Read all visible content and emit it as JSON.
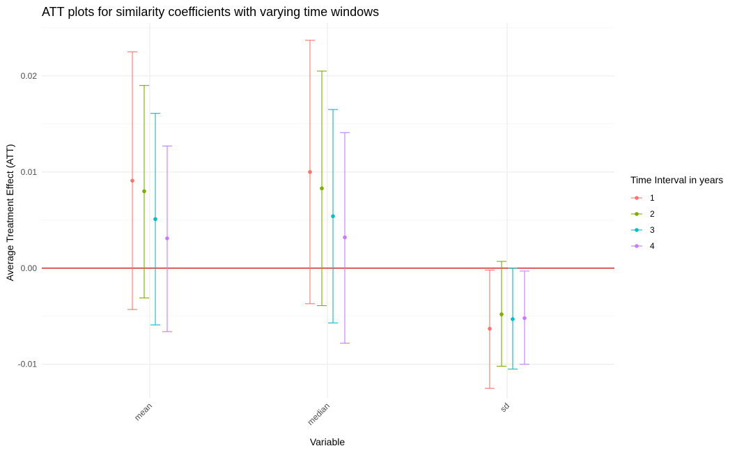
{
  "chart_data": {
    "type": "errorbar",
    "title": "ATT plots for similarity coefficients with varying time windows",
    "xlabel": "Variable",
    "ylabel": "Average Treatment Effect (ATT)",
    "categories": [
      "mean",
      "median",
      "sd"
    ],
    "y_ticks": [
      {
        "value": -0.01,
        "label": "-0.01"
      },
      {
        "value": 0.0,
        "label": "0.00"
      },
      {
        "value": 0.01,
        "label": "0.01"
      },
      {
        "value": 0.02,
        "label": "0.02"
      }
    ],
    "ylim": [
      -0.0135,
      0.0255
    ],
    "reference_line": {
      "y": 0.0,
      "color": "#CC0000"
    },
    "grid": true,
    "legend": {
      "title": "Time Interval in years",
      "position": "right"
    },
    "series": [
      {
        "name": "1",
        "color": "#F8766D",
        "points": [
          {
            "x": "mean",
            "y": 0.0091,
            "lower": -0.0043,
            "upper": 0.0225
          },
          {
            "x": "median",
            "y": 0.01,
            "lower": -0.0037,
            "upper": 0.0237
          },
          {
            "x": "sd",
            "y": -0.0063,
            "lower": -0.0125,
            "upper": -0.0002
          }
        ]
      },
      {
        "name": "2",
        "color": "#7CAE00",
        "points": [
          {
            "x": "mean",
            "y": 0.008,
            "lower": -0.0031,
            "upper": 0.019
          },
          {
            "x": "median",
            "y": 0.0083,
            "lower": -0.0039,
            "upper": 0.0205
          },
          {
            "x": "sd",
            "y": -0.0048,
            "lower": -0.0102,
            "upper": 0.0007
          }
        ]
      },
      {
        "name": "3",
        "color": "#00BFC4",
        "points": [
          {
            "x": "mean",
            "y": 0.0051,
            "lower": -0.0059,
            "upper": 0.0161
          },
          {
            "x": "median",
            "y": 0.0054,
            "lower": -0.0057,
            "upper": 0.0165
          },
          {
            "x": "sd",
            "y": -0.0053,
            "lower": -0.0105,
            "upper": 0.0
          }
        ]
      },
      {
        "name": "4",
        "color": "#C77CFF",
        "points": [
          {
            "x": "mean",
            "y": 0.0031,
            "lower": -0.0066,
            "upper": 0.0127
          },
          {
            "x": "median",
            "y": 0.0032,
            "lower": -0.0078,
            "upper": 0.0141
          },
          {
            "x": "sd",
            "y": -0.0052,
            "lower": -0.01,
            "upper": -0.0003
          }
        ]
      }
    ]
  }
}
